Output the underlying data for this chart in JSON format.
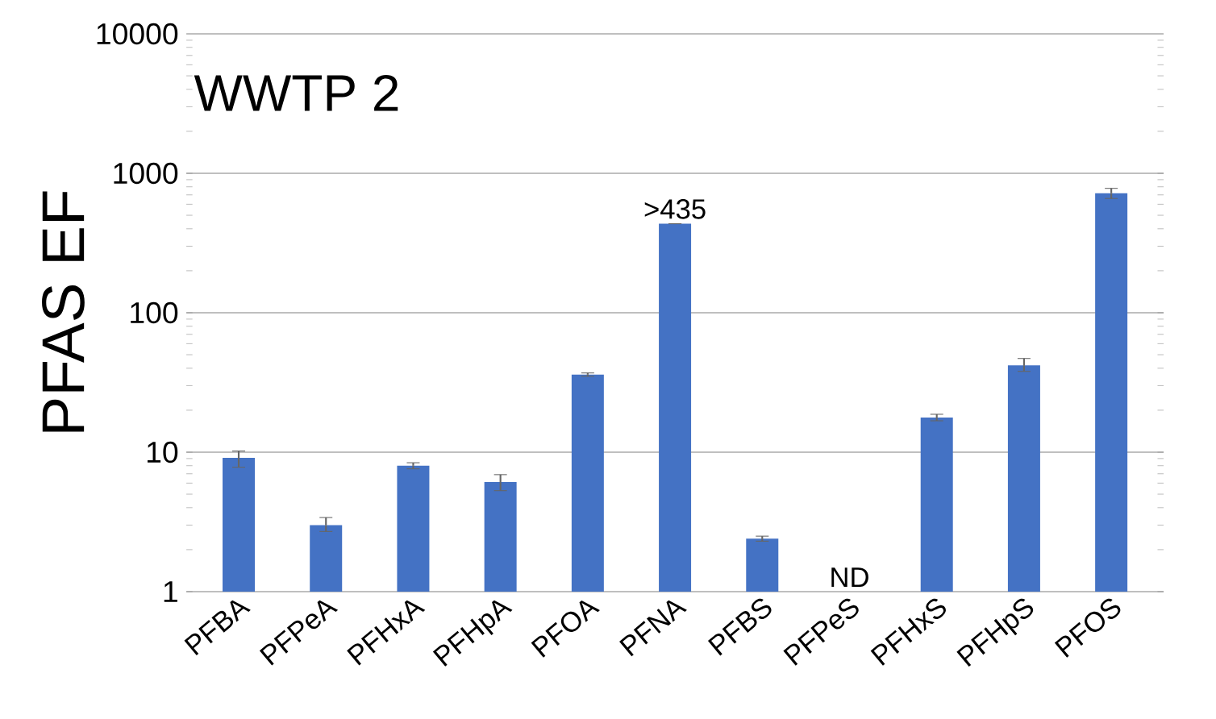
{
  "chart_data": {
    "type": "bar",
    "title": "WWTP 2",
    "ylabel": "PFAS EF",
    "categories": [
      "PFBA",
      "PFPeA",
      "PFHxA",
      "PFHpA",
      "PFOA",
      "PFNA",
      "PFBS",
      "PFPeS",
      "PFHxS",
      "PFHpS",
      "PFOS"
    ],
    "values": [
      9.1,
      3.0,
      8.0,
      6.1,
      36,
      435,
      2.4,
      null,
      17.7,
      42,
      720
    ],
    "errors": [
      [
        7.8,
        10.2
      ],
      [
        2.7,
        3.4
      ],
      [
        7.6,
        8.4
      ],
      [
        5.3,
        6.9
      ],
      [
        35,
        37
      ],
      null,
      [
        2.3,
        2.5
      ],
      null,
      [
        16.8,
        18.7
      ],
      [
        38,
        47
      ],
      [
        660,
        780
      ]
    ],
    "value_labels": [
      null,
      null,
      null,
      null,
      null,
      ">435",
      null,
      "ND",
      null,
      null,
      null
    ],
    "color": "#4472c4",
    "log": "y",
    "ylim": [
      1,
      10000
    ],
    "yticks": [
      1,
      10,
      100,
      1000,
      10000
    ],
    "grid": "y"
  }
}
